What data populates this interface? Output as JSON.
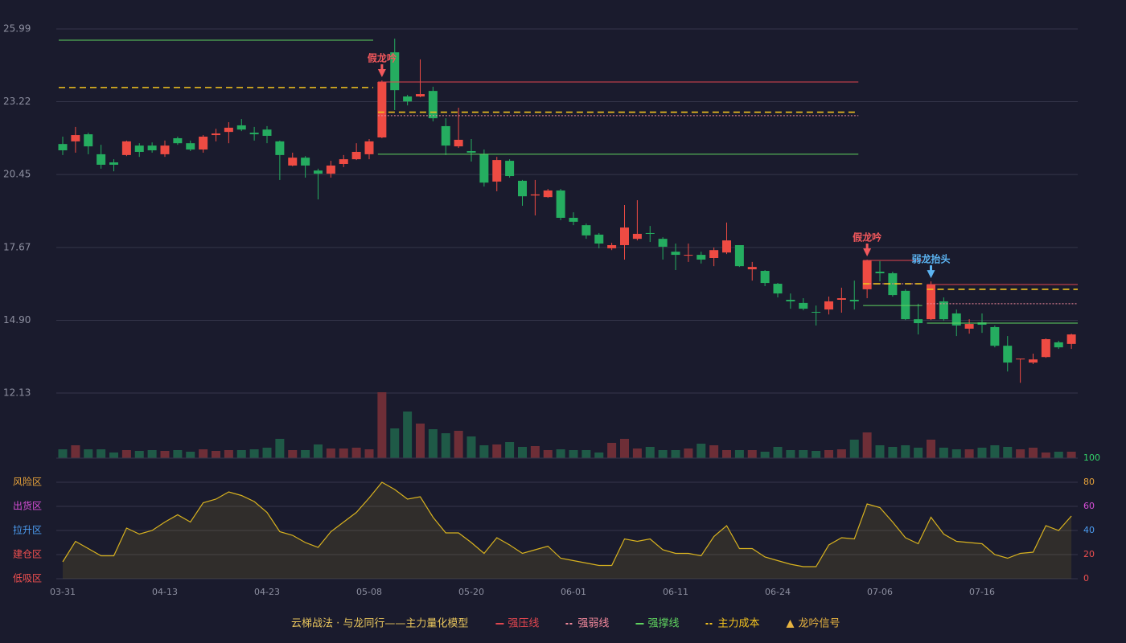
{
  "chart_data": {
    "type": "candlestick",
    "categories": [
      "03-31",
      null,
      null,
      null,
      null,
      null,
      null,
      null,
      "04-13",
      null,
      null,
      null,
      null,
      null,
      null,
      null,
      "04-23",
      null,
      null,
      null,
      null,
      null,
      null,
      null,
      "05-08",
      null,
      null,
      null,
      null,
      null,
      null,
      null,
      "05-20",
      null,
      null,
      null,
      null,
      null,
      null,
      null,
      "06-01",
      null,
      null,
      null,
      null,
      null,
      null,
      null,
      "06-11",
      null,
      null,
      null,
      null,
      null,
      null,
      null,
      "06-24",
      null,
      null,
      null,
      null,
      null,
      null,
      null,
      "07-06",
      null,
      null,
      null,
      null,
      null,
      null,
      null,
      "07-16",
      null,
      null,
      null,
      null,
      null,
      null,
      null
    ],
    "open": [
      21.61,
      21.71,
      21.98,
      21.22,
      20.91,
      21.19,
      21.55,
      21.55,
      21.22,
      21.83,
      21.64,
      21.4,
      21.95,
      22.07,
      22.32,
      22.04,
      22.16,
      21.71,
      20.79,
      21.09,
      20.6,
      20.48,
      20.85,
      21.03,
      21.22,
      21.86,
      25.1,
      23.42,
      23.42,
      23.63,
      22.29,
      21.52,
      21.34,
      21.22,
      20.18,
      20.97,
      20.21,
      19.65,
      19.59,
      19.84,
      18.8,
      18.52,
      18.16,
      17.64,
      17.76,
      18.0,
      18.22,
      18.0,
      17.51,
      17.36,
      17.39,
      17.27,
      17.48,
      17.76,
      16.84,
      16.78,
      16.29,
      15.68,
      15.56,
      15.22,
      15.31,
      15.68,
      15.68,
      16.08,
      16.75,
      16.69,
      16.02,
      14.94,
      14.94,
      15.62,
      15.16,
      14.58,
      14.82,
      14.64,
      13.93,
      13.44,
      13.29,
      13.5,
      14.06,
      14.0
    ],
    "close": [
      21.37,
      21.95,
      21.52,
      20.82,
      20.82,
      21.71,
      21.31,
      21.37,
      21.55,
      21.64,
      21.4,
      21.89,
      22.01,
      22.23,
      22.16,
      21.98,
      21.92,
      21.19,
      21.09,
      20.79,
      20.48,
      20.79,
      21.03,
      21.31,
      21.71,
      23.97,
      23.66,
      23.23,
      23.51,
      22.59,
      21.55,
      21.77,
      21.28,
      20.14,
      21.0,
      20.39,
      19.62,
      19.69,
      19.84,
      18.8,
      18.65,
      18.13,
      17.82,
      17.76,
      18.43,
      18.19,
      18.19,
      17.7,
      17.39,
      17.39,
      17.21,
      17.57,
      17.94,
      16.96,
      16.93,
      16.32,
      15.92,
      15.62,
      15.34,
      15.19,
      15.62,
      15.74,
      15.62,
      17.18,
      16.69,
      15.86,
      14.94,
      14.79,
      16.26,
      14.94,
      14.7,
      14.76,
      14.73,
      13.93,
      13.29,
      13.44,
      13.41,
      14.18,
      13.87,
      14.36
    ],
    "high": [
      21.89,
      22.26,
      22.04,
      21.58,
      21.03,
      21.74,
      21.64,
      21.67,
      21.74,
      21.89,
      21.74,
      21.95,
      22.19,
      22.44,
      22.56,
      22.26,
      22.29,
      21.74,
      21.28,
      21.15,
      20.67,
      20.97,
      21.19,
      21.64,
      21.8,
      24.03,
      25.62,
      23.48,
      24.83,
      23.79,
      22.59,
      22.99,
      21.8,
      21.4,
      21.12,
      21.03,
      20.24,
      20.24,
      19.9,
      19.9,
      19.01,
      18.58,
      18.22,
      17.85,
      19.29,
      19.47,
      18.49,
      18.06,
      17.82,
      17.82,
      17.51,
      17.67,
      18.62,
      17.76,
      17.12,
      16.81,
      16.32,
      15.92,
      15.74,
      15.46,
      15.8,
      16.14,
      16.41,
      17.21,
      17.15,
      16.75,
      16.08,
      15.53,
      16.38,
      15.77,
      15.31,
      14.94,
      15.16,
      14.7,
      14.3,
      13.44,
      13.63,
      14.21,
      14.12,
      14.39
    ],
    "low": [
      21.19,
      21.28,
      21.22,
      20.67,
      20.57,
      21.15,
      21.12,
      21.28,
      21.12,
      21.58,
      21.34,
      21.28,
      21.71,
      21.64,
      22.1,
      21.74,
      21.64,
      20.24,
      20.76,
      20.33,
      19.5,
      20.33,
      20.73,
      21.0,
      21.03,
      21.83,
      22.9,
      23.08,
      23.39,
      22.47,
      21.19,
      21.46,
      20.94,
      19.99,
      19.81,
      20.33,
      19.26,
      18.89,
      19.56,
      18.71,
      18.52,
      18.0,
      17.64,
      17.57,
      17.21,
      17.94,
      17.88,
      17.21,
      16.81,
      17.12,
      17.06,
      16.96,
      17.42,
      16.93,
      16.41,
      16.2,
      15.77,
      15.34,
      15.28,
      14.7,
      15.12,
      15.19,
      15.31,
      15.74,
      16.38,
      15.8,
      14.91,
      14.36,
      14.91,
      14.88,
      14.3,
      14.39,
      14.42,
      13.87,
      12.95,
      12.52,
      13.23,
      13.47,
      13.81,
      13.81
    ],
    "up_color": "#ee4b43",
    "down_color": "#25ad60",
    "ylim": [
      12.13,
      25.99
    ],
    "yticks": [
      25.99,
      23.22,
      20.45,
      17.67,
      {
        "value": 14.9,
        "label": "14.90"
      },
      12.13
    ],
    "volume": [
      11,
      16,
      11,
      11,
      7,
      10,
      9,
      10,
      9,
      10,
      8,
      11,
      9,
      10,
      10,
      11,
      13,
      24,
      10,
      10,
      17,
      12,
      12,
      13,
      11,
      82,
      37,
      58,
      43,
      36,
      31,
      34,
      27,
      16,
      17,
      20,
      14,
      15,
      10,
      11,
      10,
      10,
      7,
      19,
      24,
      12,
      14,
      10,
      10,
      12,
      18,
      16,
      10,
      10,
      10,
      8,
      14,
      10,
      10,
      9,
      10,
      11,
      23,
      32,
      16,
      14,
      16,
      13,
      23,
      13,
      11,
      11,
      13,
      16,
      14,
      11,
      13,
      7,
      8,
      8
    ],
    "volume_up_color": "#6e2e37",
    "volume_down_color": "#1f5a47",
    "lines": [
      {
        "name": "强压线",
        "color": "#e0464f",
        "style": "solid",
        "segments": [
          {
            "from": 25,
            "to": 62,
            "value": 23.97
          },
          {
            "from": 63,
            "to": 67,
            "value": 17.18
          },
          {
            "from": 68,
            "to": 79,
            "value": 16.26
          }
        ]
      },
      {
        "name": "强弱线",
        "color": "#f3899c",
        "style": "dotted",
        "segments": [
          {
            "from": 25,
            "to": 62,
            "value": 22.69
          },
          {
            "from": 63,
            "to": 67,
            "value": 16.29
          },
          {
            "from": 68,
            "to": 79,
            "value": 15.53
          }
        ]
      },
      {
        "name": "强撑线",
        "color": "#5fd35f",
        "style": "solid",
        "segments": [
          {
            "from": 0,
            "to": 24,
            "value": 25.56
          },
          {
            "from": 25,
            "to": 62,
            "value": 21.22
          },
          {
            "from": 63,
            "to": 67,
            "value": 15.46
          },
          {
            "from": 68,
            "to": 79,
            "value": 14.79
          }
        ]
      },
      {
        "name": "主力成本",
        "color": "#f2c21e",
        "style": "dashed",
        "segments": [
          {
            "from": 0,
            "to": 24,
            "value": 23.76
          },
          {
            "from": 25,
            "to": 62,
            "value": 22.82
          },
          {
            "from": 63,
            "to": 67,
            "value": 16.29
          },
          {
            "from": 68,
            "to": 79,
            "value": 16.08
          }
        ]
      }
    ],
    "signals": [
      {
        "index": 25,
        "label": "假龙吟",
        "color": "#f2585c"
      },
      {
        "index": 63,
        "label": "假龙吟",
        "color": "#f2585c"
      },
      {
        "index": 68,
        "label": "弱龙抬头",
        "color": "#5cb4f2"
      }
    ],
    "oscillator": {
      "values": [
        14,
        31,
        25,
        19,
        19,
        42,
        37,
        40,
        47,
        53,
        47,
        63,
        66,
        72,
        69,
        64,
        55,
        39,
        36,
        30,
        26,
        39,
        47,
        55,
        67,
        80,
        74,
        66,
        68,
        51,
        38,
        38,
        30,
        21,
        34,
        28,
        21,
        24,
        27,
        17,
        15,
        13,
        11,
        11,
        33,
        31,
        33,
        24,
        21,
        21,
        19,
        35,
        44,
        25,
        25,
        18,
        15,
        12,
        10,
        10,
        28,
        34,
        33,
        62,
        59,
        47,
        34,
        29,
        51,
        37,
        31,
        30,
        29,
        20,
        17,
        21,
        22,
        44,
        40,
        52
      ],
      "color": "#d8b21f",
      "ylim": [
        0,
        100
      ],
      "yticks": [
        100,
        80,
        60,
        40,
        20,
        0
      ],
      "ytick_colors": [
        "#33d46a",
        "#e8a33a",
        "#d94fd9",
        "#4c9df2",
        "#ef4f4f",
        "#ef4f4f"
      ],
      "zones": [
        {
          "label": "风险区",
          "value": 80,
          "color": "#e8a33a"
        },
        {
          "label": "出货区",
          "value": 60,
          "color": "#d94fd9"
        },
        {
          "label": "拉升区",
          "value": 40,
          "color": "#4c9df2"
        },
        {
          "label": "建仓区",
          "value": 20,
          "color": "#ef4f4f"
        },
        {
          "label": "低吸区",
          "value": 0,
          "color": "#ef4f4f"
        }
      ]
    },
    "legend_title": "云梯战法 · 与龙同行——主力量化模型",
    "signal_legend": "龙吟信号",
    "signal_legend_color": "#e8b440"
  }
}
